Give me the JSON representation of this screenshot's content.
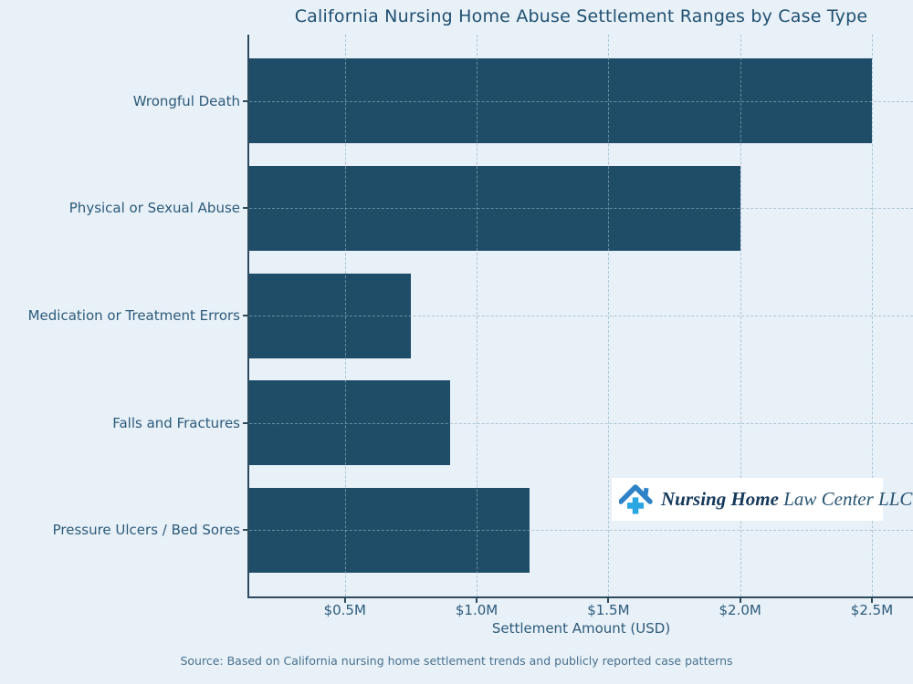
{
  "title": "California Nursing Home Abuse Settlement Ranges by Case Type",
  "chart_data": {
    "type": "bar",
    "orientation": "horizontal",
    "categories": [
      "Wrongful Death",
      "Physical or Sexual Abuse",
      "Medication or Treatment Errors",
      "Falls and Fractures",
      "Pressure Ulcers / Bed Sores"
    ],
    "values": [
      2.5,
      2.0,
      0.75,
      0.9,
      1.2
    ],
    "values_unit": "million USD",
    "xlabel": "Settlement Amount (USD)",
    "xlim": [
      0.137,
      2.656
    ],
    "xticks": [
      0.5,
      1.0,
      1.5,
      2.0,
      2.5
    ],
    "xtick_labels": [
      "$0.5M",
      "$1.0M",
      "$1.5M",
      "$2.0M",
      "$2.5M"
    ],
    "grid": "both-dashed, drawn over bars",
    "legend": "none",
    "bar_color": "#1f4d68",
    "background_color": "#e8f1f8"
  },
  "source_note": "Source: Based on California nursing home settlement trends and publicly reported case patterns",
  "watermark": {
    "brand_bold": "Nursing Home",
    "brand_regular": " Law Center LLC",
    "icon": "house-cross-icon",
    "icon_roof_color": "#2e82c5",
    "icon_cross_color": "#2aa6e0"
  }
}
